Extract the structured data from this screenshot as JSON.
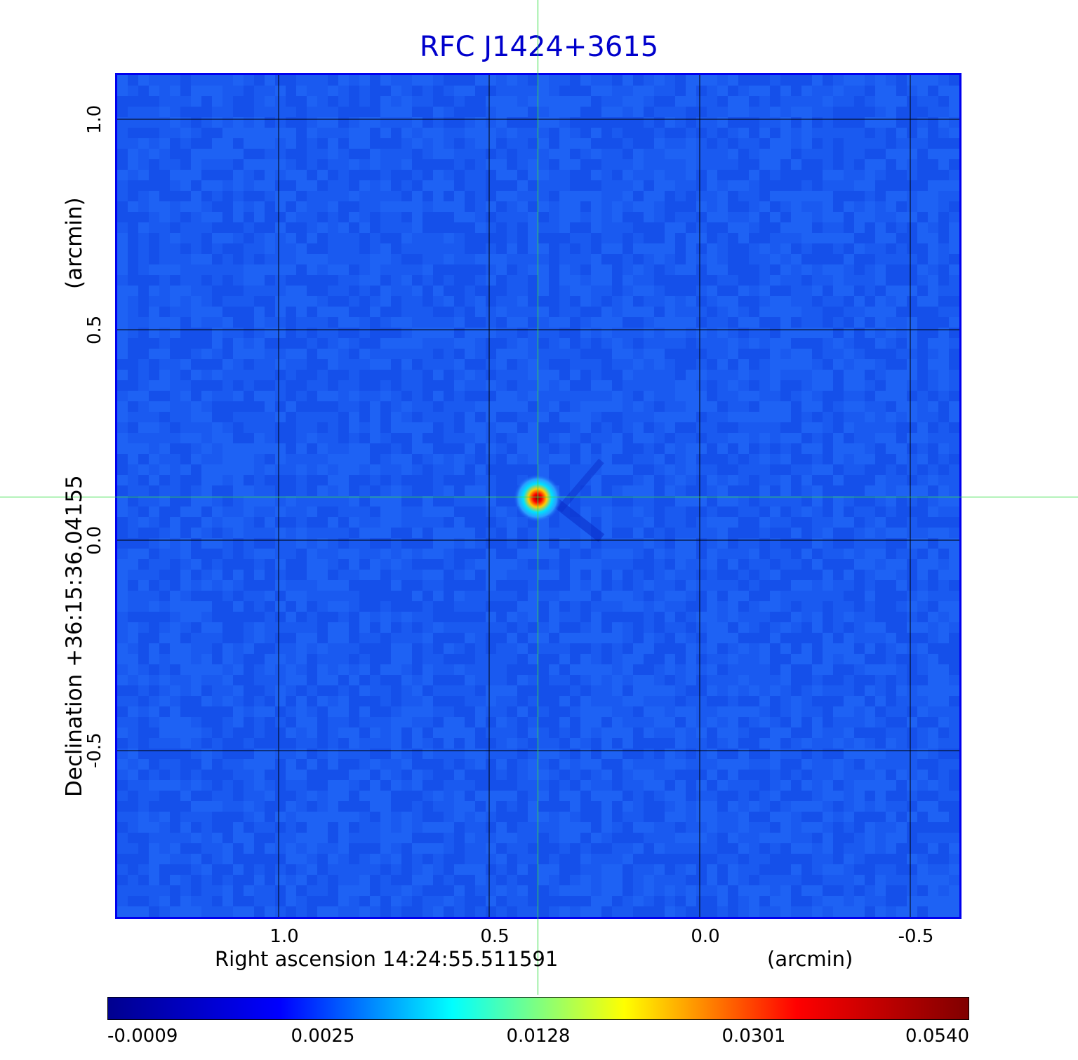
{
  "title": "RFC J1424+3615",
  "x_axis": {
    "label": "Right ascension  14:24:55.511591",
    "unit": "(arcmin)",
    "ticks": [
      "1.0",
      "0.5",
      "0.0",
      "-0.5"
    ]
  },
  "y_axis": {
    "label": "Declination  +36:15:36.04155",
    "unit": "(arcmin)",
    "ticks": [
      "1.0",
      "0.5",
      "0.0",
      "-0.5"
    ]
  },
  "colorbar": {
    "colors": [
      "#00008f",
      "#0000ff",
      "#00ffff",
      "#ffff00",
      "#ff0000",
      "#800000"
    ],
    "labels": [
      "-0.0009",
      "0.0025",
      "0.0128",
      "0.0301",
      "0.0540"
    ]
  },
  "source": {
    "x_arcmin": 0.385,
    "y_arcmin": 0.1
  },
  "colors": {
    "background": "#1a5af0",
    "crosshair": "#33dd44",
    "title": "#0000cc"
  }
}
